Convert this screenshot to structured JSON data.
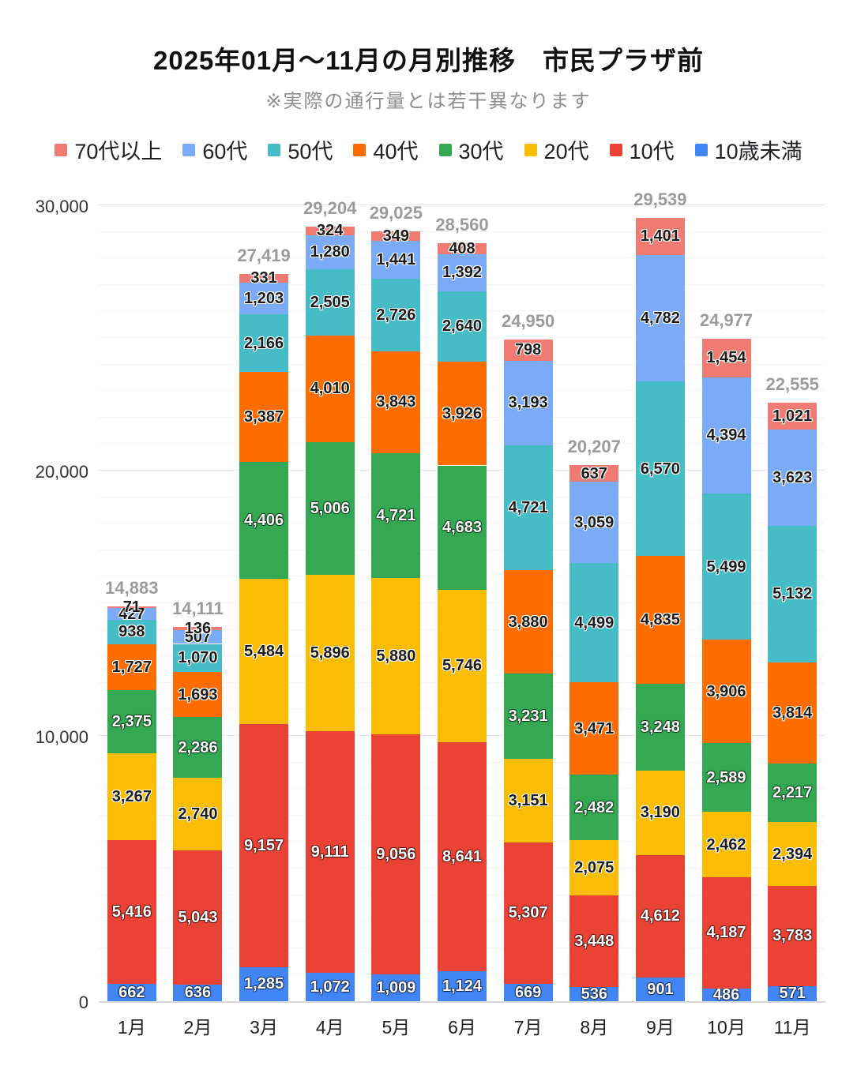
{
  "title": "2025年01月～11月の月別推移　市民プラザ前",
  "subtitle": "※実際の通行量とは若干異なります",
  "chart_data": {
    "type": "bar",
    "stacked": true,
    "title": "2025年01月～11月の月別推移　市民プラザ前",
    "subtitle": "※実際の通行量とは若干異なります",
    "legend_position": "top",
    "grid": true,
    "ylim": [
      0,
      30000
    ],
    "y_ticks": [
      0,
      10000,
      20000,
      30000
    ],
    "categories": [
      "1月",
      "2月",
      "3月",
      "4月",
      "5月",
      "6月",
      "7月",
      "8月",
      "9月",
      "10月",
      "11月"
    ],
    "totals": [
      14883,
      14111,
      27419,
      29204,
      29025,
      28560,
      24950,
      20207,
      29539,
      24977,
      22555
    ],
    "series": [
      {
        "name": "10歳未満",
        "color": "#4285F4",
        "label_color": "light",
        "values": [
          662,
          636,
          1285,
          1072,
          1009,
          1124,
          669,
          536,
          901,
          486,
          571
        ]
      },
      {
        "name": "10代",
        "color": "#EA4335",
        "label_color": "light",
        "values": [
          5416,
          5043,
          9157,
          9111,
          9056,
          8641,
          5307,
          3448,
          4612,
          4187,
          3783
        ]
      },
      {
        "name": "20代",
        "color": "#FBBC04",
        "label_color": "dark",
        "values": [
          3267,
          2740,
          5484,
          5896,
          5880,
          5746,
          3151,
          2075,
          3190,
          2462,
          2394
        ]
      },
      {
        "name": "30代",
        "color": "#34A853",
        "label_color": "light",
        "values": [
          2375,
          2286,
          4406,
          5006,
          4721,
          4683,
          3231,
          2482,
          3248,
          2589,
          2217
        ]
      },
      {
        "name": "40代",
        "color": "#FF6D01",
        "label_color": "dark",
        "values": [
          1727,
          1693,
          3387,
          4010,
          3843,
          3926,
          3880,
          3471,
          4835,
          3906,
          3814
        ]
      },
      {
        "name": "50代",
        "color": "#46BDC6",
        "label_color": "dark",
        "values": [
          938,
          1070,
          2166,
          2505,
          2726,
          2640,
          4721,
          4499,
          6570,
          5499,
          5132
        ]
      },
      {
        "name": "60代",
        "color": "#7BAAF7",
        "label_color": "dark",
        "values": [
          427,
          507,
          1203,
          1280,
          1441,
          1392,
          3193,
          3059,
          4782,
          4394,
          3623
        ]
      },
      {
        "name": "70代以上",
        "color": "#F07B72",
        "label_color": "dark",
        "values": [
          71,
          136,
          331,
          324,
          349,
          408,
          798,
          637,
          1401,
          1454,
          1021
        ]
      }
    ]
  }
}
